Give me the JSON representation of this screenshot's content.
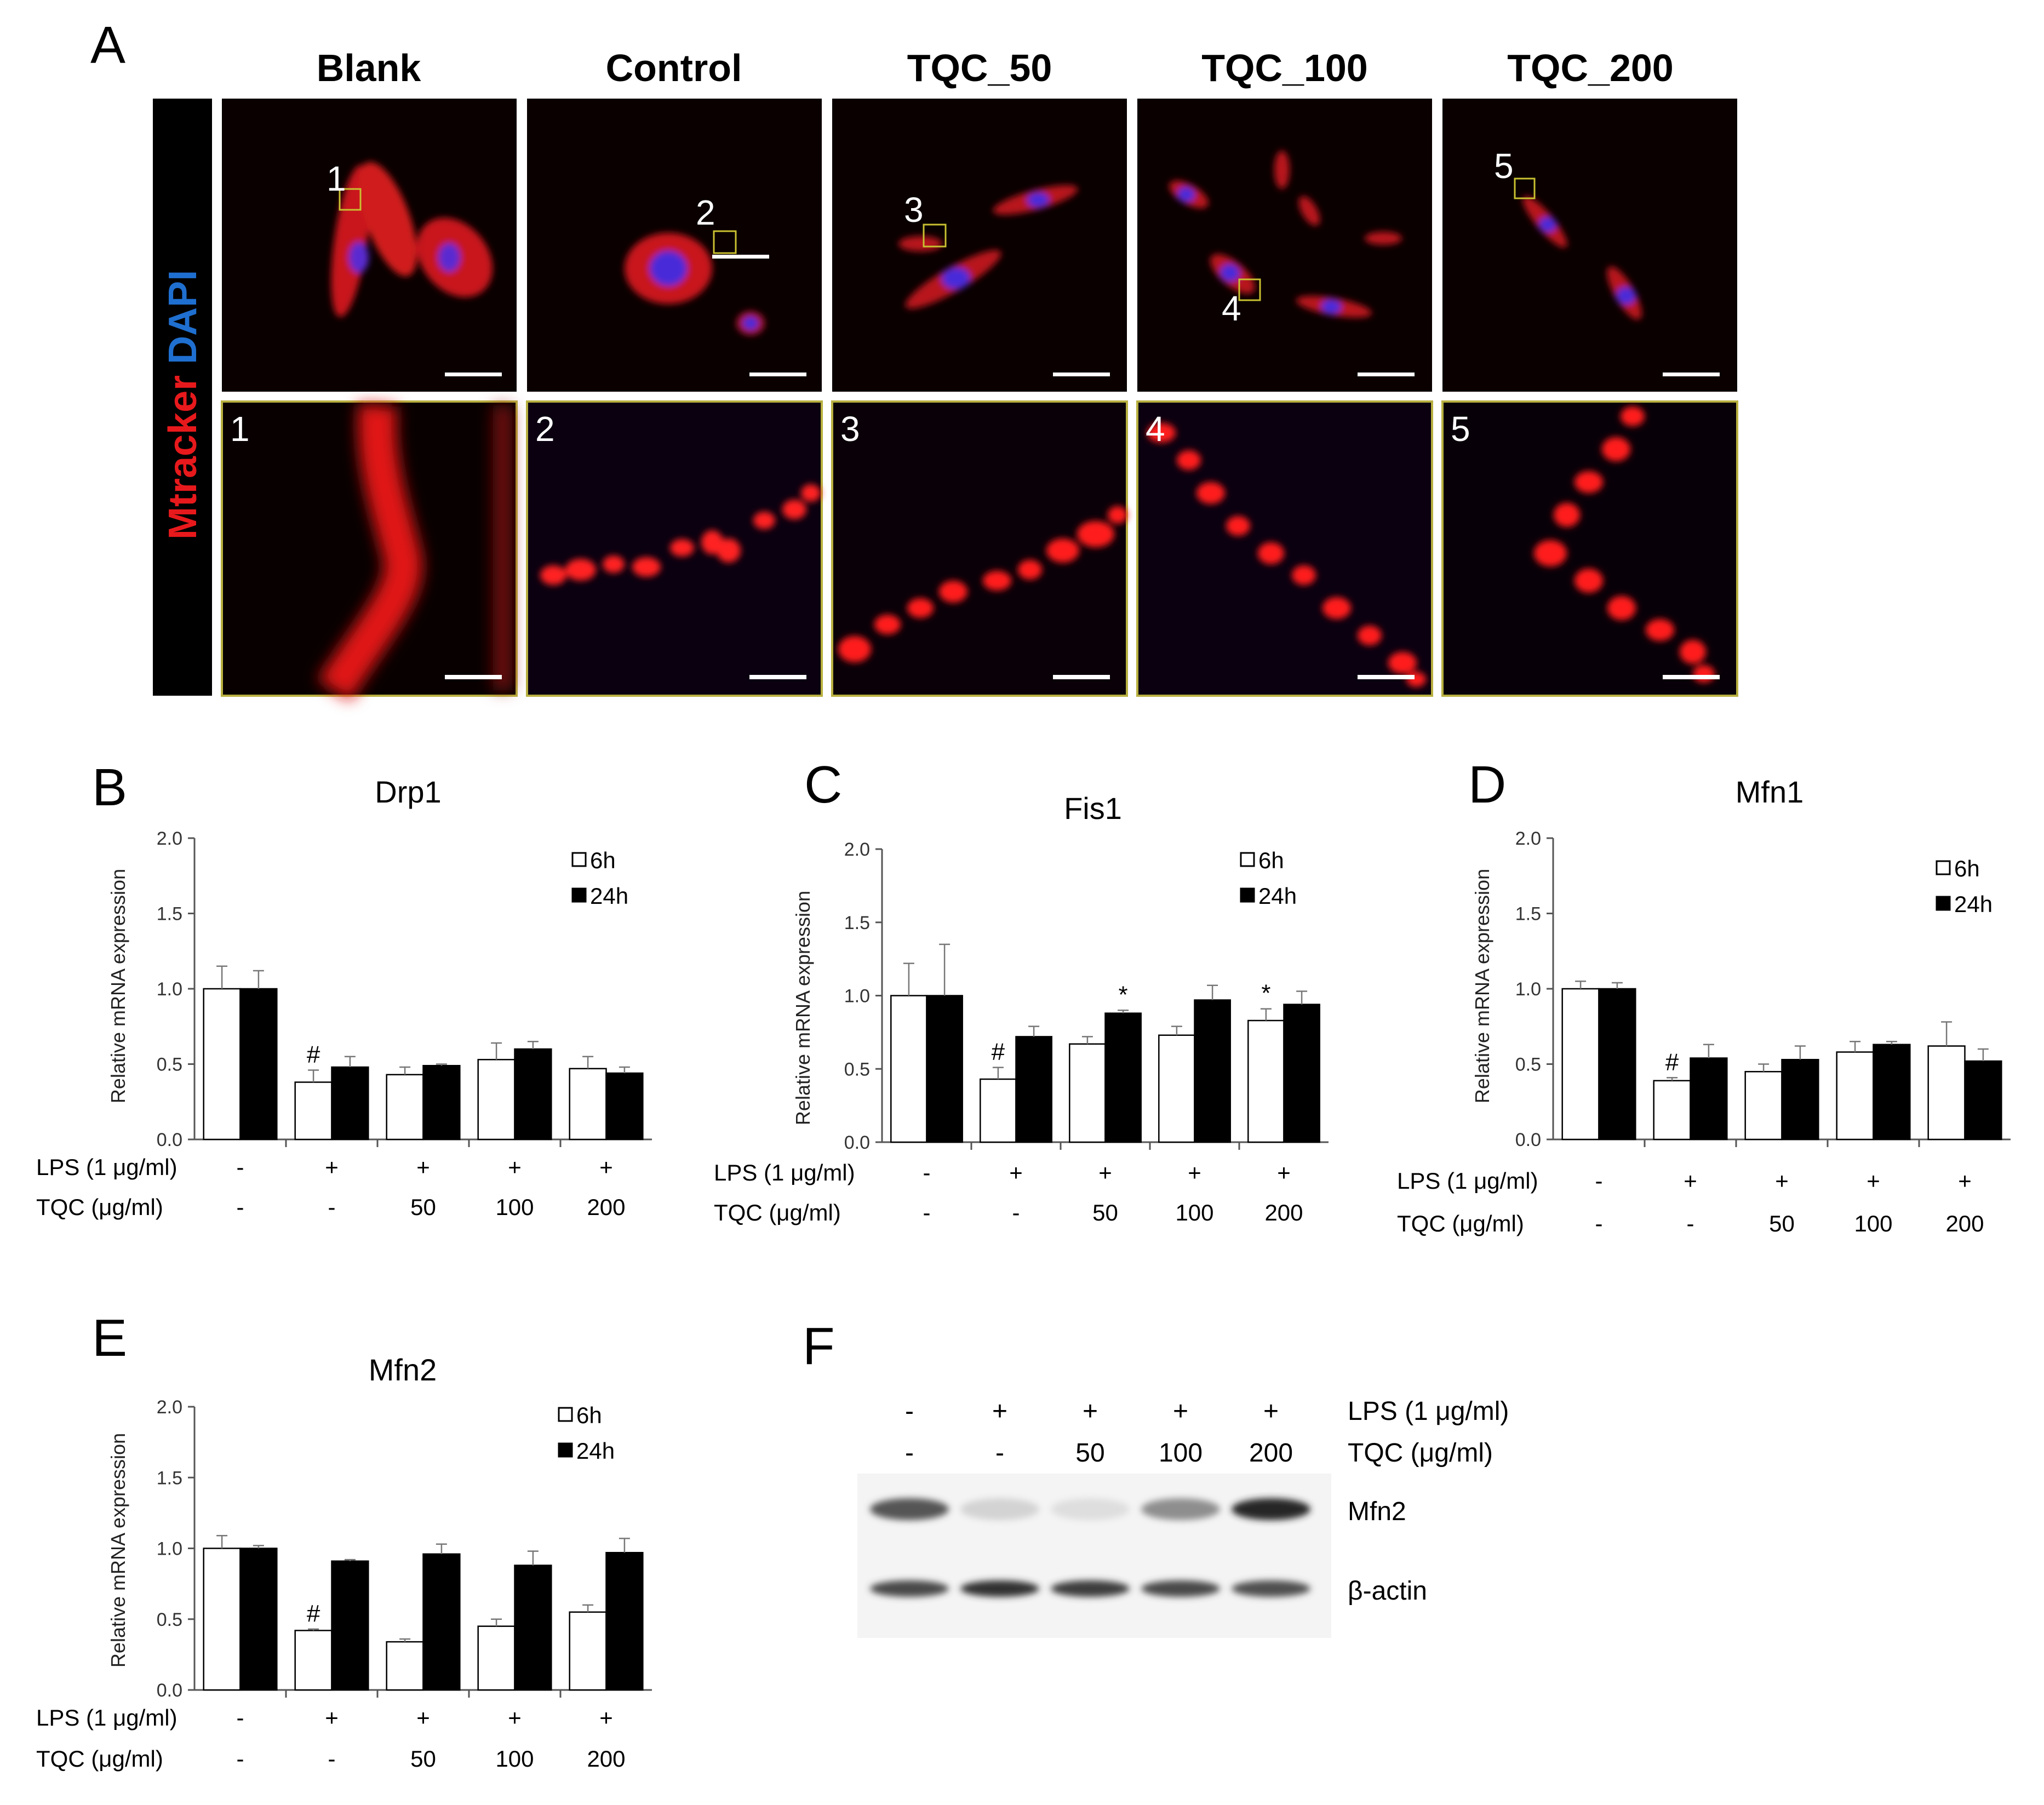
{
  "panelA": {
    "letter": "A",
    "columns": [
      "Blank",
      "Control",
      "TQC_50",
      "TQC_100",
      "TQC_200"
    ],
    "stain": {
      "part1": "Mtracker",
      "part2": "DAPI",
      "color1": "#e8191c",
      "color2": "#1f6fd0"
    },
    "insets": [
      "1",
      "2",
      "3",
      "4",
      "5"
    ]
  },
  "row_labels": {
    "lps": "LPS (1 μg/ml)",
    "tqc": "TQC (μg/ml)"
  },
  "conditions": {
    "lps": [
      "-",
      "+",
      "+",
      "+",
      "+"
    ],
    "tqc": [
      "-",
      "-",
      "50",
      "100",
      "200"
    ]
  },
  "legend": {
    "h6": "6h",
    "h24": "24h"
  },
  "chart_data": [
    {
      "letter": "B",
      "type": "bar",
      "title": "Drp1",
      "ylabel": "Relative mRNA expression",
      "ylim": [
        0,
        2
      ],
      "yticks": [
        "0.0",
        "0.5",
        "1.0",
        "1.5",
        "2.0"
      ],
      "series": [
        {
          "name": "6h",
          "values": [
            1.0,
            0.38,
            0.43,
            0.53,
            0.47
          ],
          "err": [
            0.15,
            0.08,
            0.05,
            0.11,
            0.08
          ]
        },
        {
          "name": "24h",
          "values": [
            1.0,
            0.48,
            0.49,
            0.6,
            0.44
          ],
          "err": [
            0.12,
            0.07,
            0.01,
            0.05,
            0.04
          ]
        }
      ],
      "marks": [
        {
          "series": 0,
          "index": 1,
          "text": "#"
        }
      ]
    },
    {
      "letter": "C",
      "type": "bar",
      "title": "Fis1",
      "ylabel": "Relative mRNA expression",
      "ylim": [
        0,
        2
      ],
      "yticks": [
        "0.0",
        "0.5",
        "1.0",
        "1.5",
        "2.0"
      ],
      "series": [
        {
          "name": "6h",
          "values": [
            1.0,
            0.43,
            0.67,
            0.73,
            0.83
          ],
          "err": [
            0.22,
            0.08,
            0.05,
            0.06,
            0.08
          ]
        },
        {
          "name": "24h",
          "values": [
            1.0,
            0.72,
            0.88,
            0.97,
            0.94
          ],
          "err": [
            0.35,
            0.07,
            0.02,
            0.1,
            0.09
          ]
        }
      ],
      "marks": [
        {
          "series": 0,
          "index": 1,
          "text": "#"
        },
        {
          "series": 1,
          "index": 2,
          "text": "*"
        },
        {
          "series": 0,
          "index": 4,
          "text": "*"
        }
      ]
    },
    {
      "letter": "D",
      "type": "bar",
      "title": "Mfn1",
      "ylabel": "Relative mRNA expression",
      "ylim": [
        0,
        2
      ],
      "yticks": [
        "0.0",
        "0.5",
        "1.0",
        "1.5",
        "2.0"
      ],
      "series": [
        {
          "name": "6h",
          "values": [
            1.0,
            0.39,
            0.45,
            0.58,
            0.62
          ],
          "err": [
            0.05,
            0.02,
            0.05,
            0.07,
            0.16
          ]
        },
        {
          "name": "24h",
          "values": [
            1.0,
            0.54,
            0.53,
            0.63,
            0.52
          ],
          "err": [
            0.04,
            0.09,
            0.09,
            0.02,
            0.08
          ]
        }
      ],
      "marks": [
        {
          "series": 0,
          "index": 1,
          "text": "#"
        }
      ]
    },
    {
      "letter": "E",
      "type": "bar",
      "title": "Mfn2",
      "ylabel": "Relative mRNA expression",
      "ylim": [
        0,
        2
      ],
      "yticks": [
        "0.0",
        "0.5",
        "1.0",
        "1.5",
        "2.0"
      ],
      "series": [
        {
          "name": "6h",
          "values": [
            1.0,
            0.42,
            0.34,
            0.45,
            0.55
          ],
          "err": [
            0.09,
            0.01,
            0.02,
            0.05,
            0.05
          ]
        },
        {
          "name": "24h",
          "values": [
            1.0,
            0.91,
            0.96,
            0.88,
            0.97
          ],
          "err": [
            0.02,
            0.01,
            0.07,
            0.1,
            0.1
          ]
        }
      ],
      "marks": [
        {
          "series": 0,
          "index": 1,
          "text": "#"
        }
      ]
    }
  ],
  "panelF": {
    "letter": "F",
    "bands": [
      {
        "label": "Mfn2",
        "intensity": [
          0.7,
          0.15,
          0.1,
          0.45,
          0.9
        ]
      },
      {
        "label": "β-actin",
        "intensity": [
          0.75,
          0.85,
          0.8,
          0.75,
          0.72
        ]
      }
    ]
  }
}
